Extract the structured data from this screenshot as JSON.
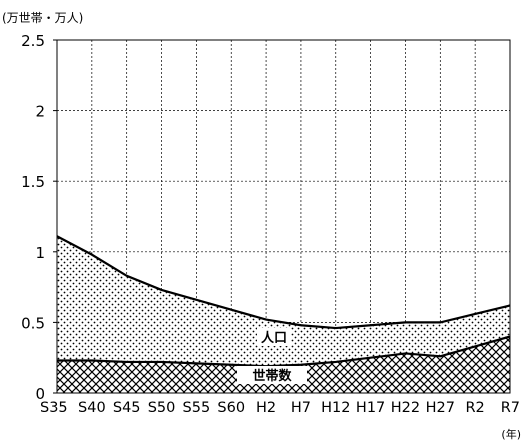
{
  "chart_data": {
    "type": "area",
    "ylabel": "(万世帯・万人)",
    "xlabel": "(年)",
    "categories": [
      "S35",
      "S40",
      "S45",
      "S50",
      "S55",
      "S60",
      "H2",
      "H7",
      "H12",
      "H17",
      "H22",
      "H27",
      "R2",
      "R7"
    ],
    "ylim": [
      0,
      2.5
    ],
    "yticks": [
      0,
      0.5,
      1,
      1.5,
      2,
      2.5
    ],
    "ytick_labels": [
      "0",
      "0.5",
      "1",
      "1.5",
      "2",
      "2.5"
    ],
    "grid": true,
    "series": [
      {
        "name": "人口",
        "pattern": "dots",
        "values": [
          1.11,
          0.98,
          0.83,
          0.73,
          0.66,
          0.59,
          0.52,
          0.48,
          0.46,
          0.48,
          0.5,
          0.5,
          0.56,
          0.62
        ]
      },
      {
        "name": "世帯数",
        "pattern": "crosshatch",
        "values": [
          0.23,
          0.23,
          0.22,
          0.22,
          0.21,
          0.2,
          0.19,
          0.2,
          0.22,
          0.25,
          0.28,
          0.26,
          0.33,
          0.4
        ]
      }
    ],
    "colors": {
      "line": "#000000",
      "grid": "#000000",
      "background": "#ffffff"
    }
  }
}
